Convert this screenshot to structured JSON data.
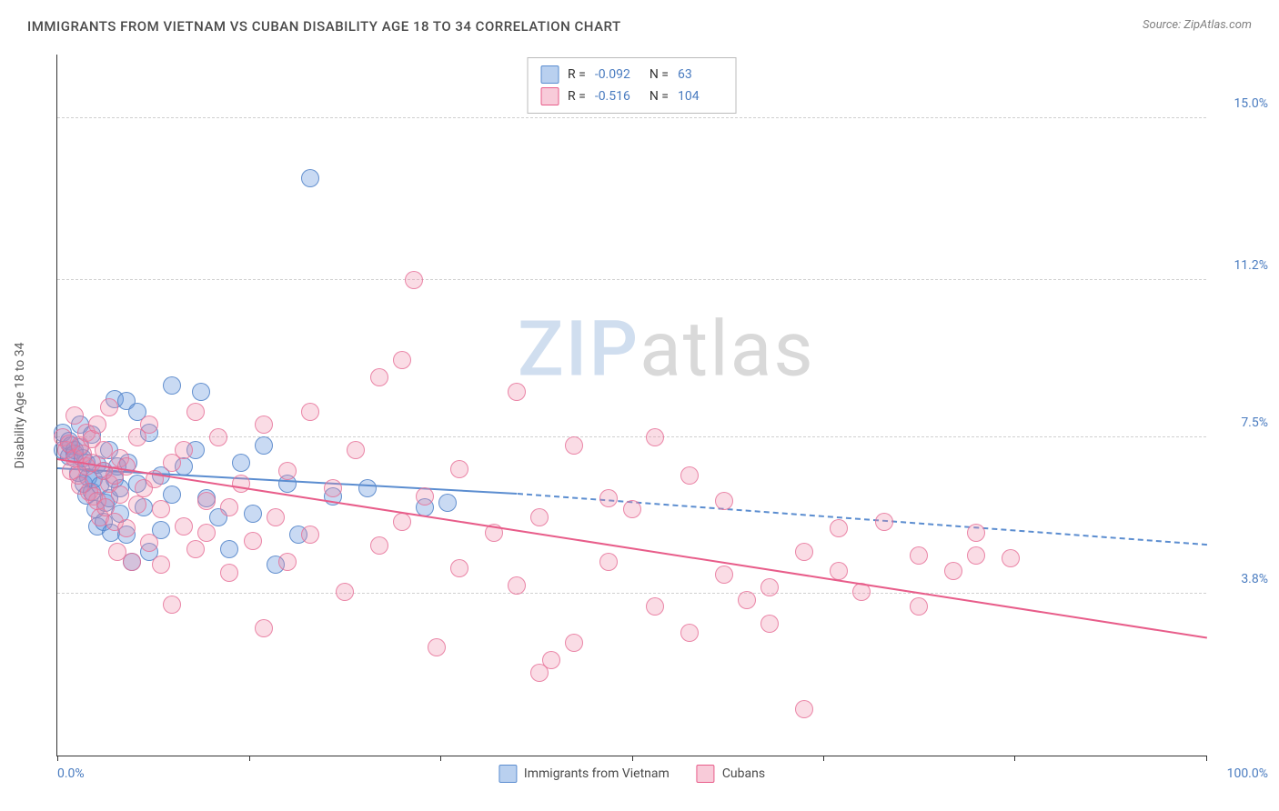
{
  "header": {
    "title": "IMMIGRANTS FROM VIETNAM VS CUBAN DISABILITY AGE 18 TO 34 CORRELATION CHART",
    "source": "Source: ZipAtlas.com"
  },
  "watermark": {
    "zip": "ZIP",
    "atlas": "atlas"
  },
  "chart": {
    "type": "scatter",
    "ylabel": "Disability Age 18 to 34",
    "xlim": [
      0,
      100
    ],
    "ylim": [
      0,
      16.5
    ],
    "yticks": [
      {
        "v": 3.8,
        "label": "3.8%"
      },
      {
        "v": 7.5,
        "label": "7.5%"
      },
      {
        "v": 11.2,
        "label": "11.2%"
      },
      {
        "v": 15.0,
        "label": "15.0%"
      }
    ],
    "xtick_positions": [
      0,
      16.67,
      33.33,
      50,
      66.67,
      83.33,
      100
    ],
    "xlabel_min": "0.0%",
    "xlabel_max": "100.0%",
    "background_color": "#ffffff",
    "grid_color": "#d0d0d0",
    "point_radius": 10,
    "series": [
      {
        "name": "Immigrants from Vietnam",
        "color_fill": "rgba(100,150,220,0.35)",
        "color_stroke": "#5b8dd0",
        "R": "-0.092",
        "N": "63",
        "trend": {
          "x1": 0,
          "y1": 6.8,
          "x2_solid": 40,
          "y2_solid": 6.2,
          "x2": 100,
          "y2": 5.0
        },
        "points": [
          [
            0.5,
            7.6
          ],
          [
            0.5,
            7.2
          ],
          [
            1,
            7.05
          ],
          [
            1,
            7.4
          ],
          [
            1.2,
            7.3
          ],
          [
            1.5,
            7.2
          ],
          [
            1.5,
            7.1
          ],
          [
            1.8,
            6.65
          ],
          [
            2,
            7.8
          ],
          [
            2,
            7.25
          ],
          [
            2.2,
            7.0
          ],
          [
            2.3,
            6.4
          ],
          [
            2.5,
            6.9
          ],
          [
            2.5,
            6.12
          ],
          [
            2.7,
            6.55
          ],
          [
            3,
            7.55
          ],
          [
            3,
            6.2
          ],
          [
            3.2,
            6.5
          ],
          [
            3.3,
            5.8
          ],
          [
            3.5,
            6.85
          ],
          [
            3.5,
            5.4
          ],
          [
            3.7,
            6.35
          ],
          [
            4,
            6.7
          ],
          [
            4,
            5.5
          ],
          [
            4.2,
            5.95
          ],
          [
            4.5,
            7.2
          ],
          [
            4.5,
            6.05
          ],
          [
            4.7,
            5.25
          ],
          [
            5,
            6.5
          ],
          [
            5,
            8.4
          ],
          [
            5.2,
            6.8
          ],
          [
            5.5,
            5.7
          ],
          [
            5.5,
            6.3
          ],
          [
            6,
            5.2
          ],
          [
            6,
            8.35
          ],
          [
            6.2,
            6.9
          ],
          [
            6.5,
            4.55
          ],
          [
            7,
            8.1
          ],
          [
            7,
            6.4
          ],
          [
            7.5,
            5.85
          ],
          [
            8,
            7.6
          ],
          [
            8,
            4.8
          ],
          [
            9,
            6.6
          ],
          [
            9,
            5.3
          ],
          [
            10,
            8.7
          ],
          [
            10,
            6.15
          ],
          [
            11,
            6.8
          ],
          [
            12,
            7.2
          ],
          [
            12.5,
            8.55
          ],
          [
            13,
            6.05
          ],
          [
            14,
            5.6
          ],
          [
            15,
            4.85
          ],
          [
            16,
            6.9
          ],
          [
            17,
            5.7
          ],
          [
            18,
            7.3
          ],
          [
            19,
            4.5
          ],
          [
            20,
            6.4
          ],
          [
            21,
            5.2
          ],
          [
            22,
            13.6
          ],
          [
            24,
            6.1
          ],
          [
            27,
            6.3
          ],
          [
            32,
            5.85
          ],
          [
            34,
            5.95
          ]
        ]
      },
      {
        "name": "Cubans",
        "color_fill": "rgba(240,140,170,0.3)",
        "color_stroke": "#e85d8a",
        "R": "-0.516",
        "N": "104",
        "trend": {
          "x1": 0,
          "y1": 7.0,
          "x2_solid": 100,
          "y2_solid": 2.8,
          "x2": 100,
          "y2": 2.8
        },
        "points": [
          [
            0.5,
            7.5
          ],
          [
            0.8,
            7.2
          ],
          [
            1,
            7.35
          ],
          [
            1.2,
            6.7
          ],
          [
            1.5,
            7.0
          ],
          [
            1.5,
            8.0
          ],
          [
            1.8,
            6.6
          ],
          [
            2,
            7.3
          ],
          [
            2,
            6.35
          ],
          [
            2.2,
            7.1
          ],
          [
            2.5,
            6.8
          ],
          [
            2.5,
            7.6
          ],
          [
            2.8,
            6.2
          ],
          [
            3,
            6.9
          ],
          [
            3,
            7.45
          ],
          [
            3.2,
            6.1
          ],
          [
            3.5,
            7.8
          ],
          [
            3.5,
            6.0
          ],
          [
            3.7,
            5.6
          ],
          [
            4,
            6.7
          ],
          [
            4,
            7.2
          ],
          [
            4.2,
            5.85
          ],
          [
            4.5,
            6.4
          ],
          [
            4.5,
            8.2
          ],
          [
            5,
            5.5
          ],
          [
            5,
            6.6
          ],
          [
            5.2,
            4.8
          ],
          [
            5.5,
            6.15
          ],
          [
            5.5,
            7.0
          ],
          [
            6,
            5.35
          ],
          [
            6,
            6.8
          ],
          [
            6.5,
            4.55
          ],
          [
            7,
            7.5
          ],
          [
            7,
            5.9
          ],
          [
            7.5,
            6.3
          ],
          [
            8,
            5.0
          ],
          [
            8,
            7.8
          ],
          [
            8.5,
            6.5
          ],
          [
            9,
            4.5
          ],
          [
            9,
            5.8
          ],
          [
            10,
            6.9
          ],
          [
            10,
            3.55
          ],
          [
            11,
            5.4
          ],
          [
            11,
            7.2
          ],
          [
            12,
            4.85
          ],
          [
            12,
            8.1
          ],
          [
            13,
            6.0
          ],
          [
            13,
            5.25
          ],
          [
            14,
            7.5
          ],
          [
            15,
            4.3
          ],
          [
            15,
            5.85
          ],
          [
            16,
            6.4
          ],
          [
            17,
            5.05
          ],
          [
            18,
            7.8
          ],
          [
            18,
            3.0
          ],
          [
            19,
            5.6
          ],
          [
            20,
            6.7
          ],
          [
            20,
            4.55
          ],
          [
            22,
            8.1
          ],
          [
            22,
            5.2
          ],
          [
            24,
            6.3
          ],
          [
            25,
            3.85
          ],
          [
            26,
            7.2
          ],
          [
            28,
            4.95
          ],
          [
            28,
            8.9
          ],
          [
            30,
            9.3
          ],
          [
            30,
            5.5
          ],
          [
            31,
            11.2
          ],
          [
            32,
            6.1
          ],
          [
            33,
            2.55
          ],
          [
            35,
            4.4
          ],
          [
            35,
            6.75
          ],
          [
            38,
            5.25
          ],
          [
            40,
            4.0
          ],
          [
            40,
            8.55
          ],
          [
            42,
            1.95
          ],
          [
            42,
            5.6
          ],
          [
            43,
            2.25
          ],
          [
            45,
            2.65
          ],
          [
            45,
            7.3
          ],
          [
            48,
            6.05
          ],
          [
            48,
            4.55
          ],
          [
            50,
            5.8
          ],
          [
            52,
            3.5
          ],
          [
            52,
            7.5
          ],
          [
            55,
            6.6
          ],
          [
            55,
            2.9
          ],
          [
            58,
            4.25
          ],
          [
            58,
            6.0
          ],
          [
            60,
            3.65
          ],
          [
            62,
            3.1
          ],
          [
            62,
            3.95
          ],
          [
            65,
            4.8
          ],
          [
            65,
            1.1
          ],
          [
            68,
            4.35
          ],
          [
            68,
            5.35
          ],
          [
            70,
            3.85
          ],
          [
            72,
            5.5
          ],
          [
            75,
            4.7
          ],
          [
            75,
            3.5
          ],
          [
            78,
            4.35
          ],
          [
            80,
            5.25
          ],
          [
            80,
            4.7
          ],
          [
            83,
            4.65
          ]
        ]
      }
    ]
  },
  "legend_top": {
    "r_label": "R =",
    "n_label": "N ="
  },
  "legend_bottom": {
    "items": [
      "Immigrants from Vietnam",
      "Cubans"
    ]
  }
}
